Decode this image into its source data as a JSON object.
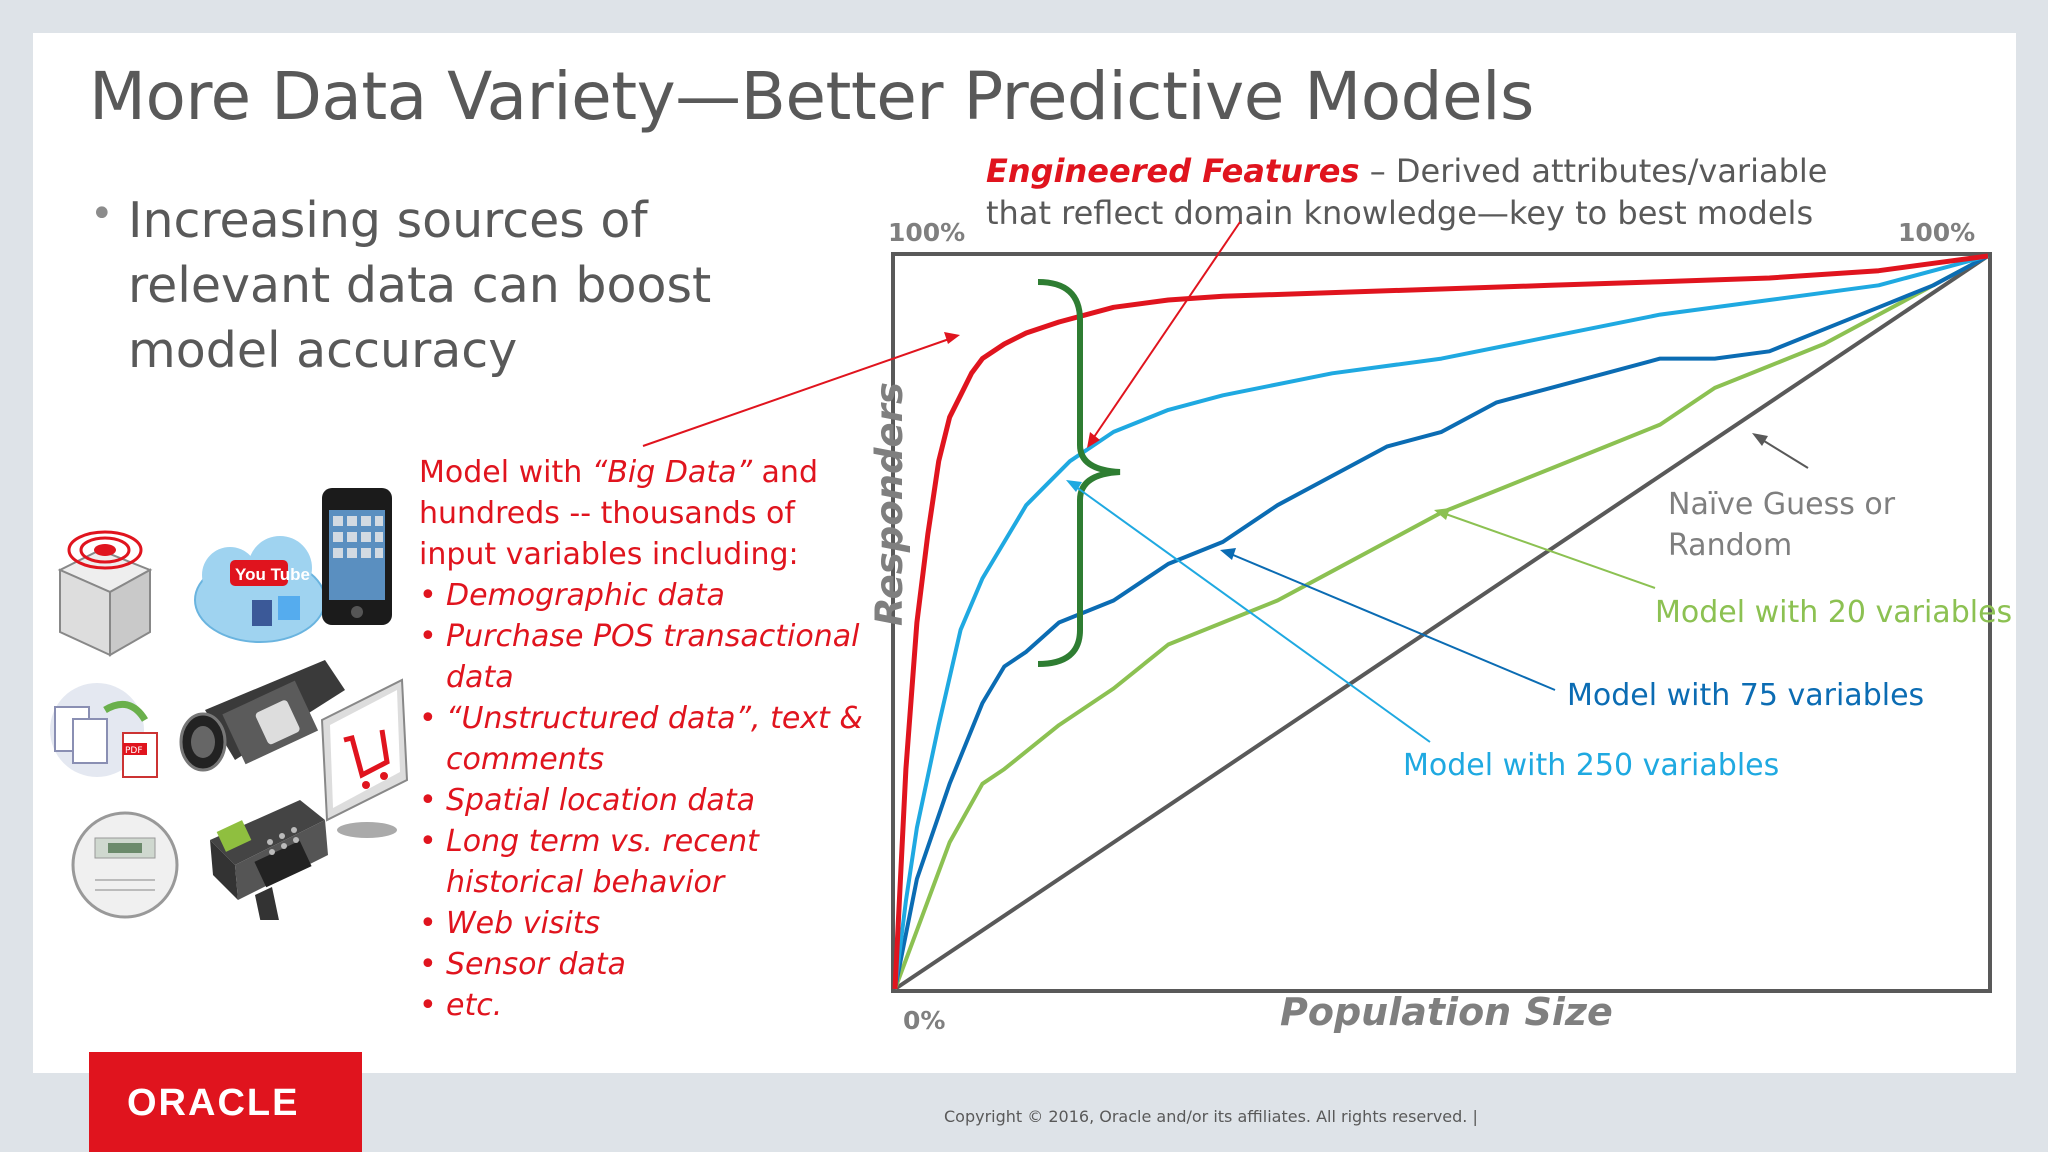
{
  "slide": {
    "title": "More Data Variety—Better Predictive Models",
    "bullet": "Increasing sources of relevant data can boost model accuracy",
    "model_intro": {
      "prefix": "Model with ",
      "highlight": "“Big Data”",
      "suffix": " and hundreds -- thousands of input variables including:"
    },
    "data_sources": [
      "Demographic data",
      "Purchase POS transactional data",
      "“Unstructured data”, text & comments",
      "Spatial location data",
      "Long term vs. recent historical behavior",
      "Web visits",
      "Sensor data",
      "etc."
    ],
    "engineered": {
      "label": "Engineered Features",
      "text": " – Derived attributes/variable that reflect domain knowledge—key to best models"
    },
    "icons": [
      "radar-device-icon",
      "social-cloud-icon",
      "smartphone-icon",
      "document-exchange-icon",
      "video-camera-icon",
      "shopping-cart-monitor-icon",
      "smart-meter-icon",
      "handheld-scanner-icon"
    ],
    "footer": "Copyright © 2016, Oracle and/or its affiliates. All rights reserved.  |",
    "logo_text": "ORACLE"
  },
  "chart_data": {
    "type": "line",
    "xlabel": "Population Size",
    "ylabel": "Responders",
    "x_tick_labels": [
      "0%"
    ],
    "y_tick_labels": [
      "100%",
      "100%"
    ],
    "xlim": [
      0,
      100
    ],
    "ylim": [
      0,
      100
    ],
    "grid": false,
    "series": [
      {
        "name": "Model with “Big Data”",
        "color": "#e0141e",
        "x": [
          0,
          1,
          2,
          3,
          4,
          5,
          6,
          7,
          8,
          10,
          12,
          15,
          20,
          25,
          30,
          40,
          50,
          60,
          70,
          80,
          90,
          95,
          100
        ],
        "y": [
          0,
          30,
          50,
          62,
          72,
          78,
          81,
          84,
          86,
          88,
          89.5,
          91,
          93,
          94,
          94.5,
          95,
          95.5,
          96,
          96.5,
          97,
          98,
          99,
          100
        ]
      },
      {
        "name": "Model with 250 variables",
        "color": "#1fa9e1",
        "x": [
          0,
          1,
          2,
          4,
          6,
          8,
          10,
          12,
          14,
          16,
          20,
          25,
          30,
          40,
          50,
          60,
          70,
          80,
          90,
          100
        ],
        "y": [
          0,
          12,
          22,
          36,
          49,
          56,
          61,
          66,
          69,
          72,
          76,
          79,
          81,
          84,
          86,
          89,
          92,
          94,
          96,
          100
        ]
      },
      {
        "name": "Model with 75 variables",
        "color": "#0b6cb3",
        "x": [
          0,
          2,
          5,
          8,
          10,
          12,
          15,
          20,
          25,
          30,
          35,
          40,
          45,
          50,
          55,
          60,
          65,
          70,
          75,
          80,
          85,
          90,
          95,
          100
        ],
        "y": [
          0,
          15,
          28,
          39,
          44,
          46,
          50,
          53,
          58,
          61,
          66,
          70,
          74,
          76,
          80,
          82,
          84,
          86,
          86,
          87,
          90,
          93,
          96,
          100
        ]
      },
      {
        "name": "Model with 20 variables",
        "color": "#8cc152",
        "x": [
          0,
          2,
          5,
          8,
          10,
          15,
          20,
          25,
          30,
          35,
          40,
          45,
          50,
          55,
          60,
          65,
          70,
          75,
          80,
          85,
          90,
          95,
          100
        ],
        "y": [
          0,
          8,
          20,
          28,
          30,
          36,
          41,
          47,
          50,
          53,
          57,
          61,
          65,
          68,
          71,
          74,
          77,
          82,
          85,
          88,
          92,
          96,
          100
        ]
      },
      {
        "name": "Naïve Guess or Random",
        "color": "#595959",
        "x": [
          0,
          100
        ],
        "y": [
          0,
          100
        ]
      }
    ]
  }
}
